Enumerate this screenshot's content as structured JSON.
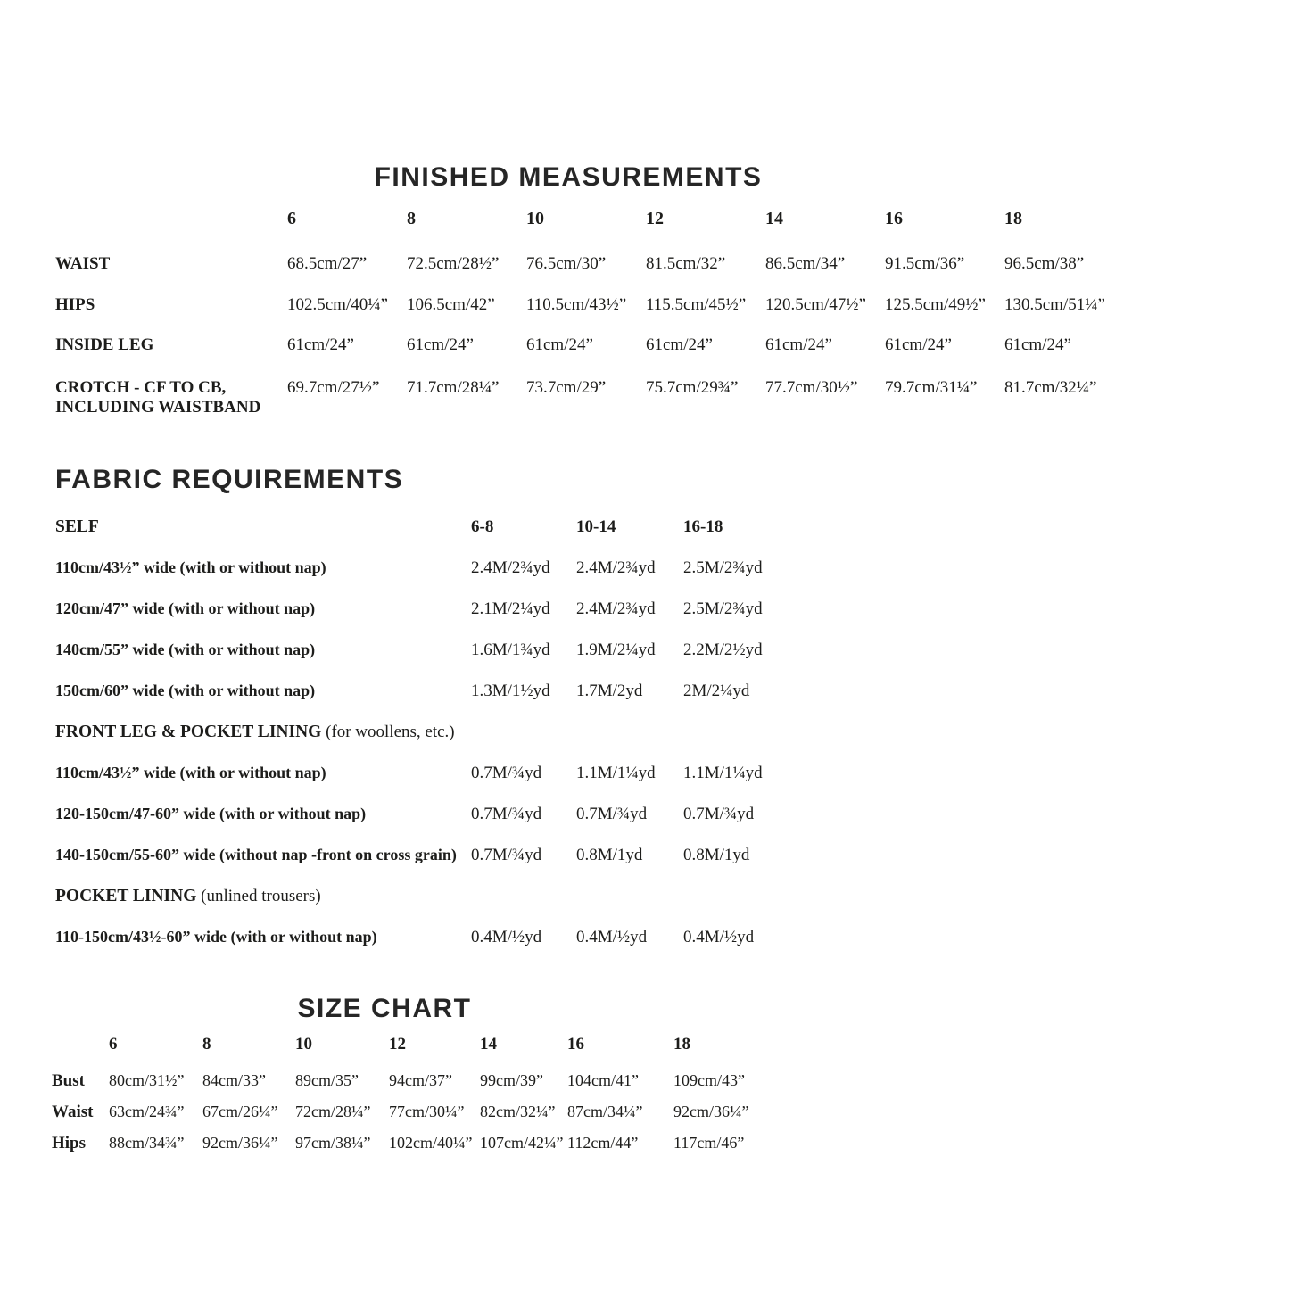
{
  "finished_measurements": {
    "title": "FINISHED MEASUREMENTS",
    "sizes": [
      "6",
      "8",
      "10",
      "12",
      "14",
      "16",
      "18"
    ],
    "rows": [
      {
        "label": "WAIST",
        "values": [
          "68.5cm/27”",
          "72.5cm/28½”",
          "76.5cm/30”",
          "81.5cm/32”",
          "86.5cm/34”",
          "91.5cm/36”",
          "96.5cm/38”"
        ]
      },
      {
        "label": "HIPS",
        "values": [
          "102.5cm/40¼”",
          "106.5cm/42”",
          "110.5cm/43½”",
          "115.5cm/45½”",
          "120.5cm/47½”",
          "125.5cm/49½”",
          "130.5cm/51¼”"
        ]
      },
      {
        "label": "INSIDE LEG",
        "values": [
          "61cm/24”",
          "61cm/24”",
          "61cm/24”",
          "61cm/24”",
          "61cm/24”",
          "61cm/24”",
          "61cm/24”"
        ]
      },
      {
        "label": "CROTCH - CF TO CB, INCLUDING WAISTBAND",
        "values": [
          "69.7cm/27½”",
          "71.7cm/28¼”",
          "73.7cm/29”",
          "75.7cm/29¾”",
          "77.7cm/30½”",
          "79.7cm/31¼”",
          "81.7cm/32¼”"
        ]
      }
    ]
  },
  "fabric_requirements": {
    "title": "FABRIC REQUIREMENTS",
    "size_groups": [
      "6-8",
      "10-14",
      "16-18"
    ],
    "sections": [
      {
        "heading": "SELF",
        "note": "",
        "show_size_groups": true,
        "rows": [
          {
            "label": "110cm/43½” wide (with or without nap)",
            "values": [
              "2.4M/2¾yd",
              "2.4M/2¾yd",
              "2.5M/2¾yd"
            ]
          },
          {
            "label": "120cm/47” wide (with or without nap)",
            "values": [
              "2.1M/2¼yd",
              "2.4M/2¾yd",
              "2.5M/2¾yd"
            ]
          },
          {
            "label": "140cm/55” wide (with or without nap)",
            "values": [
              "1.6M/1¾yd",
              "1.9M/2¼yd",
              "2.2M/2½yd"
            ]
          },
          {
            "label": "150cm/60” wide (with or without nap)",
            "values": [
              "1.3M/1½yd",
              "1.7M/2yd",
              "2M/2¼yd"
            ]
          }
        ]
      },
      {
        "heading": "FRONT LEG & POCKET LINING",
        "note": "(for woollens, etc.)",
        "show_size_groups": false,
        "rows": [
          {
            "label": "110cm/43½” wide (with or without nap)",
            "values": [
              "0.7M/¾yd",
              "1.1M/1¼yd",
              "1.1M/1¼yd"
            ]
          },
          {
            "label": "120-150cm/47-60” wide (with or without nap)",
            "values": [
              "0.7M/¾yd",
              "0.7M/¾yd",
              "0.7M/¾yd"
            ]
          },
          {
            "label": "140-150cm/55-60” wide (without nap -front on cross grain)",
            "values": [
              "0.7M/¾yd",
              "0.8M/1yd",
              "0.8M/1yd"
            ]
          }
        ]
      },
      {
        "heading": "POCKET LINING",
        "note": "(unlined trousers)",
        "show_size_groups": false,
        "rows": [
          {
            "label": "110-150cm/43½-60” wide (with or without nap)",
            "values": [
              "0.4M/½yd",
              "0.4M/½yd",
              "0.4M/½yd"
            ]
          }
        ]
      }
    ]
  },
  "size_chart": {
    "title": "SIZE CHART",
    "sizes": [
      "6",
      "8",
      "10",
      "12",
      "14",
      "16",
      "18"
    ],
    "rows": [
      {
        "label": "Bust",
        "values": [
          "80cm/31½”",
          "84cm/33”",
          "89cm/35”",
          "94cm/37”",
          "99cm/39”",
          "104cm/41”",
          "109cm/43”"
        ]
      },
      {
        "label": "Waist",
        "values": [
          "63cm/24¾”",
          "67cm/26¼”",
          "72cm/28¼”",
          "77cm/30¼”",
          "82cm/32¼”",
          "87cm/34¼”",
          "92cm/36¼”"
        ]
      },
      {
        "label": "Hips",
        "values": [
          "88cm/34¾”",
          "92cm/36¼”",
          "97cm/38¼”",
          "102cm/40¼”",
          "107cm/42¼”",
          "112cm/44”",
          "117cm/46”"
        ]
      }
    ]
  }
}
